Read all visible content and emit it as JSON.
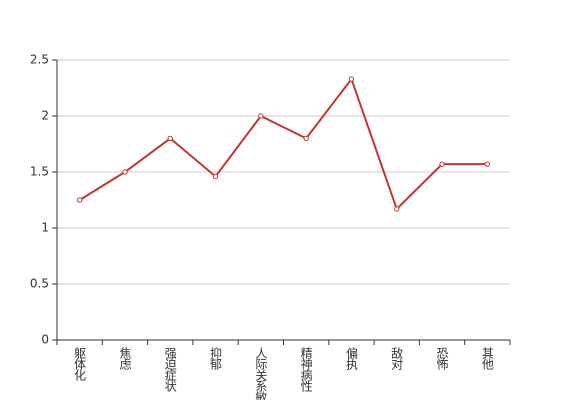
{
  "chart_data": {
    "type": "line",
    "categories": [
      "躯体化",
      "焦虑",
      "强迫症状",
      "抑郁",
      "人际关系敏感",
      "精神病性",
      "偏执",
      "敌对",
      "恐怖",
      "其他"
    ],
    "series": [
      {
        "name": null,
        "color": "#c23531",
        "values": [
          1.25,
          1.5,
          1.8,
          1.46,
          2.0,
          1.8,
          2.33,
          1.17,
          1.57,
          1.57
        ]
      }
    ],
    "ylim": [
      0,
      2.5
    ],
    "yticks": [
      0,
      0.5,
      1,
      1.5,
      2,
      2.5
    ],
    "grid": true
  }
}
